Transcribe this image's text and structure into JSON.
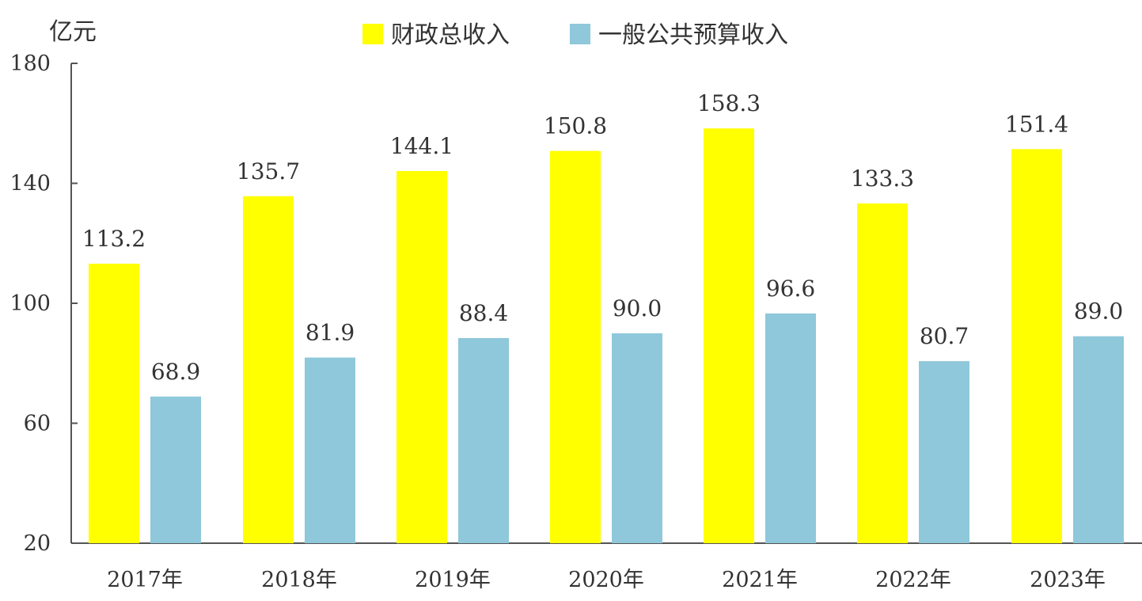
{
  "chart_data": {
    "type": "bar",
    "title": "",
    "xlabel": "",
    "ylabel": "亿元",
    "ylim": [
      20,
      180
    ],
    "yticks": [
      20,
      60,
      100,
      140,
      180
    ],
    "grid": false,
    "legend_position": "top-center",
    "categories": [
      "2017年",
      "2018年",
      "2019年",
      "2020年",
      "2021年",
      "2022年",
      "2023年"
    ],
    "series": [
      {
        "name": "财政总收入",
        "color": "#ffff00",
        "values": [
          113.2,
          135.7,
          144.1,
          150.8,
          158.3,
          133.3,
          151.4
        ],
        "labels": [
          "113.2",
          "135.7",
          "144.1",
          "150.8",
          "158.3",
          "133.3",
          "151.4"
        ]
      },
      {
        "name": "一般公共预算收入",
        "color": "#8ec8da",
        "values": [
          68.9,
          81.9,
          88.4,
          90.0,
          96.6,
          80.7,
          89.0
        ],
        "labels": [
          "68.9",
          "81.9",
          "88.4",
          "90.0",
          "96.6",
          "80.7",
          "89.0"
        ]
      }
    ]
  }
}
